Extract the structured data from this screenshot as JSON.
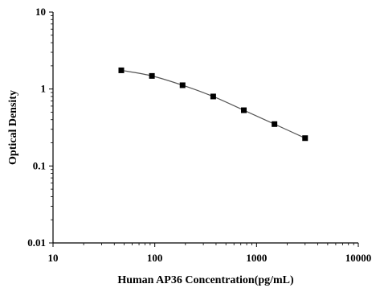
{
  "chart_data": {
    "type": "scatter",
    "xscale": "log",
    "yscale": "log",
    "xlim": [
      10,
      10000
    ],
    "ylim": [
      0.01,
      10
    ],
    "xlabel": "Human AP36 Concentration(pg/mL)",
    "ylabel": "Optical Density",
    "x_ticks": [
      "10",
      "100",
      "1000",
      "10000"
    ],
    "y_ticks": [
      "0.01",
      "0.1",
      "1",
      "10"
    ],
    "grid": false,
    "fit_line": true,
    "marker": "square",
    "series": [
      {
        "x": [
          46.875,
          93.75,
          187.5,
          375,
          750,
          1500,
          3000
        ],
        "y": [
          1.75,
          1.48,
          1.12,
          0.8,
          0.53,
          0.35,
          0.23
        ]
      }
    ]
  }
}
